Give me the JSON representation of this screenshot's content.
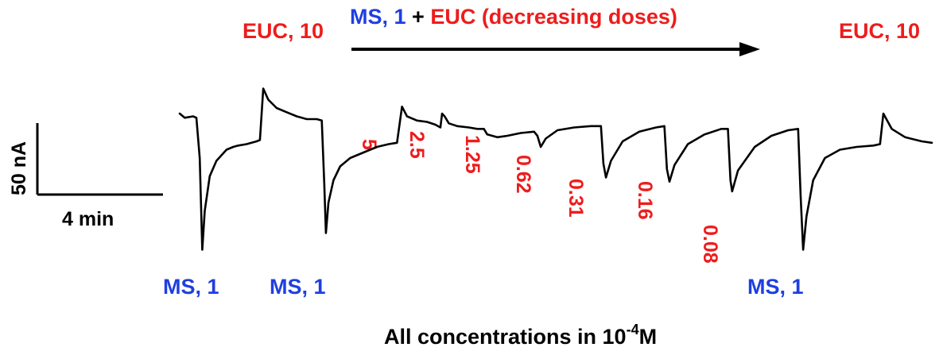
{
  "chart_data": {
    "type": "line",
    "title": "",
    "header": {
      "ms": "MS, 1",
      "plus": " + ",
      "euc": "EUC (decreasing doses)"
    },
    "euc_labels": [
      "EUC, 10",
      "EUC, 10"
    ],
    "ms_labels": [
      "MS, 1",
      "MS, 1",
      "MS, 1"
    ],
    "dose_labels": [
      "5",
      "2.5",
      "1.25",
      "0.62",
      "0.31",
      "0.16",
      "0.08"
    ],
    "scale_bar": {
      "y_label": "50 nA",
      "x_label": "4 min"
    },
    "footer": {
      "text": "All concentrations in 10",
      "exp": "-4",
      "unit": "M"
    },
    "colors": {
      "euc": "#ee1c1c",
      "ms": "#1f3fe0",
      "trace": "#000000"
    },
    "series": [
      {
        "name": "",
        "points": [
          [
            0.0,
            0
          ],
          [
            0.3,
            -3
          ],
          [
            0.8,
            -2
          ],
          [
            1.0,
            -3
          ],
          [
            1.2,
            -32
          ],
          [
            1.35,
            -98
          ],
          [
            1.5,
            -70
          ],
          [
            1.8,
            -45
          ],
          [
            2.2,
            -34
          ],
          [
            2.8,
            -26
          ],
          [
            3.2,
            -24
          ],
          [
            3.5,
            -23
          ],
          [
            4.0,
            -22
          ],
          [
            4.6,
            -20
          ],
          [
            4.8,
            -19
          ],
          [
            5.0,
            18
          ],
          [
            5.3,
            10
          ],
          [
            5.8,
            4
          ],
          [
            6.4,
            1
          ],
          [
            7.0,
            -2
          ],
          [
            7.6,
            -4
          ],
          [
            8.2,
            -4
          ],
          [
            8.5,
            -5
          ],
          [
            8.65,
            -50
          ],
          [
            8.75,
            -86
          ],
          [
            8.9,
            -64
          ],
          [
            9.2,
            -48
          ],
          [
            9.6,
            -38
          ],
          [
            10.2,
            -32
          ],
          [
            11.0,
            -28
          ],
          [
            11.8,
            -24
          ],
          [
            12.5,
            -22
          ],
          [
            13.0,
            -21
          ],
          [
            13.3,
            5
          ],
          [
            13.6,
            -2
          ],
          [
            14.2,
            -5
          ],
          [
            14.8,
            -6
          ],
          [
            15.3,
            -8
          ],
          [
            15.6,
            -10
          ],
          [
            15.7,
            0
          ],
          [
            15.85,
            -2
          ],
          [
            16.1,
            -7
          ],
          [
            16.6,
            -9
          ],
          [
            17.3,
            -10
          ],
          [
            17.8,
            -11
          ],
          [
            18.2,
            -11
          ],
          [
            18.4,
            -15
          ],
          [
            19.0,
            -17
          ],
          [
            19.6,
            -16
          ],
          [
            20.4,
            -14
          ],
          [
            21.2,
            -13
          ],
          [
            21.4,
            -16
          ],
          [
            21.6,
            -24
          ],
          [
            21.9,
            -18
          ],
          [
            22.6,
            -12
          ],
          [
            23.6,
            -10
          ],
          [
            24.6,
            -9
          ],
          [
            25.2,
            -9
          ],
          [
            25.35,
            -36
          ],
          [
            25.5,
            -46
          ],
          [
            25.8,
            -34
          ],
          [
            26.5,
            -20
          ],
          [
            27.5,
            -13
          ],
          [
            28.5,
            -10
          ],
          [
            29.0,
            -9
          ],
          [
            29.15,
            -40
          ],
          [
            29.3,
            -49
          ],
          [
            29.6,
            -37
          ],
          [
            30.4,
            -22
          ],
          [
            31.4,
            -15
          ],
          [
            32.4,
            -11
          ],
          [
            32.8,
            -11
          ],
          [
            32.95,
            -48
          ],
          [
            33.05,
            -56
          ],
          [
            33.4,
            -41
          ],
          [
            34.4,
            -24
          ],
          [
            35.4,
            -16
          ],
          [
            36.4,
            -12
          ],
          [
            37.0,
            -11
          ],
          [
            37.15,
            -60
          ],
          [
            37.3,
            -98
          ],
          [
            37.5,
            -74
          ],
          [
            37.9,
            -48
          ],
          [
            38.6,
            -32
          ],
          [
            39.5,
            -26
          ],
          [
            40.5,
            -24
          ],
          [
            41.5,
            -23
          ],
          [
            41.9,
            -22
          ],
          [
            42.1,
            0
          ],
          [
            42.6,
            -11
          ],
          [
            43.4,
            -17
          ],
          [
            44.4,
            -20
          ],
          [
            45.0,
            -21
          ]
        ]
      }
    ],
    "xlim": [
      0,
      45
    ],
    "ylim": [
      -100,
      20
    ]
  }
}
